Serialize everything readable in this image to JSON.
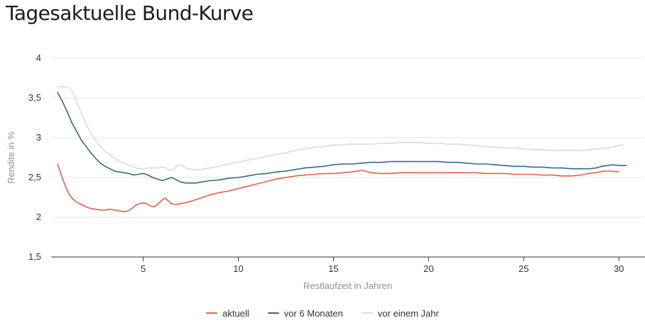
{
  "page": {
    "title": "Tagesaktuelle Bund-Kurve"
  },
  "legend": {
    "items": [
      "aktuell",
      "vor 6 Monaten",
      "vor einem Jahr"
    ]
  },
  "chart_data": {
    "type": "line",
    "title": "Tagesaktuelle Bund-Kurve",
    "xlabel": "Restlaufzeit in Jahren",
    "ylabel": "Rendite in %",
    "x_range": [
      0.2,
      31.3
    ],
    "y_range": [
      1.5,
      4.0
    ],
    "grid": "horizontal",
    "legend_position": "bottom-center",
    "x_ticks": [
      {
        "v": 5,
        "label": "5"
      },
      {
        "v": 10,
        "label": "10"
      },
      {
        "v": 15,
        "label": "15"
      },
      {
        "v": 20,
        "label": "20"
      },
      {
        "v": 25,
        "label": "25"
      },
      {
        "v": 30,
        "label": "30"
      }
    ],
    "y_ticks": [
      {
        "v": 4.0,
        "label": "4"
      },
      {
        "v": 3.5,
        "label": "3,5"
      },
      {
        "v": 3.0,
        "label": "3"
      },
      {
        "v": 2.5,
        "label": "2,5"
      },
      {
        "v": 2.0,
        "label": "2"
      },
      {
        "v": 1.5,
        "label": "1,5"
      }
    ],
    "colors": {
      "grid": "#e6e6e6",
      "axis_line": "#333333",
      "tick_label": "#333333",
      "axis_title": "#919191",
      "title": "#1c1c1c"
    },
    "series": [
      {
        "name": "aktuell",
        "color": "#e0604a",
        "points": [
          [
            0.5,
            2.67
          ],
          [
            0.7,
            2.53
          ],
          [
            0.9,
            2.4
          ],
          [
            1.1,
            2.29
          ],
          [
            1.3,
            2.23
          ],
          [
            1.5,
            2.19
          ],
          [
            1.75,
            2.16
          ],
          [
            2,
            2.13
          ],
          [
            2.25,
            2.11
          ],
          [
            2.5,
            2.1
          ],
          [
            2.75,
            2.09
          ],
          [
            3,
            2.09
          ],
          [
            3.25,
            2.1
          ],
          [
            3.5,
            2.09
          ],
          [
            3.75,
            2.08
          ],
          [
            4,
            2.07
          ],
          [
            4.2,
            2.08
          ],
          [
            4.4,
            2.11
          ],
          [
            4.6,
            2.15
          ],
          [
            4.8,
            2.17
          ],
          [
            5,
            2.18
          ],
          [
            5.2,
            2.17
          ],
          [
            5.4,
            2.14
          ],
          [
            5.6,
            2.13
          ],
          [
            5.8,
            2.17
          ],
          [
            6,
            2.22
          ],
          [
            6.15,
            2.24
          ],
          [
            6.3,
            2.21
          ],
          [
            6.5,
            2.17
          ],
          [
            6.7,
            2.16
          ],
          [
            6.9,
            2.17
          ],
          [
            7.2,
            2.18
          ],
          [
            7.5,
            2.2
          ],
          [
            8,
            2.24
          ],
          [
            8.5,
            2.28
          ],
          [
            9,
            2.31
          ],
          [
            9.5,
            2.33
          ],
          [
            10,
            2.36
          ],
          [
            10.5,
            2.39
          ],
          [
            11,
            2.42
          ],
          [
            11.5,
            2.45
          ],
          [
            12,
            2.48
          ],
          [
            12.5,
            2.5
          ],
          [
            13,
            2.52
          ],
          [
            13.5,
            2.53
          ],
          [
            14,
            2.54
          ],
          [
            14.5,
            2.55
          ],
          [
            15,
            2.55
          ],
          [
            15.5,
            2.56
          ],
          [
            16,
            2.57
          ],
          [
            16.5,
            2.59
          ],
          [
            17,
            2.56
          ],
          [
            17.5,
            2.55
          ],
          [
            18,
            2.55
          ],
          [
            18.5,
            2.56
          ],
          [
            19,
            2.56
          ],
          [
            19.5,
            2.56
          ],
          [
            20,
            2.56
          ],
          [
            20.5,
            2.56
          ],
          [
            21,
            2.56
          ],
          [
            21.5,
            2.56
          ],
          [
            22,
            2.56
          ],
          [
            22.5,
            2.56
          ],
          [
            23,
            2.55
          ],
          [
            23.5,
            2.55
          ],
          [
            24,
            2.55
          ],
          [
            24.5,
            2.54
          ],
          [
            25,
            2.54
          ],
          [
            25.5,
            2.54
          ],
          [
            26,
            2.53
          ],
          [
            26.5,
            2.53
          ],
          [
            27,
            2.52
          ],
          [
            27.5,
            2.52
          ],
          [
            28,
            2.53
          ],
          [
            28.4,
            2.55
          ],
          [
            28.8,
            2.56
          ],
          [
            29.2,
            2.58
          ],
          [
            29.6,
            2.58
          ],
          [
            30,
            2.57
          ]
        ]
      },
      {
        "name": "vor 6 Monaten",
        "color": "#36688c",
        "points": [
          [
            0.5,
            3.57
          ],
          [
            0.75,
            3.46
          ],
          [
            1,
            3.33
          ],
          [
            1.25,
            3.19
          ],
          [
            1.5,
            3.08
          ],
          [
            1.75,
            2.97
          ],
          [
            2,
            2.89
          ],
          [
            2.25,
            2.81
          ],
          [
            2.5,
            2.74
          ],
          [
            2.75,
            2.68
          ],
          [
            3,
            2.64
          ],
          [
            3.25,
            2.61
          ],
          [
            3.5,
            2.58
          ],
          [
            3.75,
            2.57
          ],
          [
            4,
            2.56
          ],
          [
            4.25,
            2.55
          ],
          [
            4.5,
            2.53
          ],
          [
            4.75,
            2.54
          ],
          [
            5,
            2.55
          ],
          [
            5.25,
            2.53
          ],
          [
            5.5,
            2.5
          ],
          [
            5.75,
            2.48
          ],
          [
            6,
            2.46
          ],
          [
            6.25,
            2.48
          ],
          [
            6.5,
            2.5
          ],
          [
            6.75,
            2.47
          ],
          [
            7,
            2.44
          ],
          [
            7.25,
            2.43
          ],
          [
            7.5,
            2.43
          ],
          [
            7.75,
            2.43
          ],
          [
            8,
            2.44
          ],
          [
            8.5,
            2.46
          ],
          [
            9,
            2.47
          ],
          [
            9.5,
            2.49
          ],
          [
            10,
            2.5
          ],
          [
            10.5,
            2.52
          ],
          [
            11,
            2.54
          ],
          [
            11.5,
            2.55
          ],
          [
            12,
            2.57
          ],
          [
            12.5,
            2.58
          ],
          [
            13,
            2.6
          ],
          [
            13.5,
            2.62
          ],
          [
            14,
            2.63
          ],
          [
            14.5,
            2.64
          ],
          [
            15,
            2.66
          ],
          [
            15.5,
            2.67
          ],
          [
            16,
            2.67
          ],
          [
            16.5,
            2.68
          ],
          [
            17,
            2.69
          ],
          [
            17.5,
            2.69
          ],
          [
            18,
            2.7
          ],
          [
            18.5,
            2.7
          ],
          [
            19,
            2.7
          ],
          [
            19.5,
            2.7
          ],
          [
            20,
            2.7
          ],
          [
            20.5,
            2.7
          ],
          [
            21,
            2.69
          ],
          [
            21.5,
            2.69
          ],
          [
            22,
            2.68
          ],
          [
            22.5,
            2.67
          ],
          [
            23,
            2.67
          ],
          [
            23.5,
            2.66
          ],
          [
            24,
            2.65
          ],
          [
            24.5,
            2.64
          ],
          [
            25,
            2.64
          ],
          [
            25.5,
            2.63
          ],
          [
            26,
            2.63
          ],
          [
            26.5,
            2.62
          ],
          [
            27,
            2.62
          ],
          [
            27.5,
            2.61
          ],
          [
            28,
            2.61
          ],
          [
            28.5,
            2.61
          ],
          [
            28.8,
            2.62
          ],
          [
            29.1,
            2.64
          ],
          [
            29.4,
            2.65
          ],
          [
            29.7,
            2.66
          ],
          [
            30,
            2.65
          ],
          [
            30.4,
            2.65
          ]
        ]
      },
      {
        "name": "vor einem Jahr",
        "color": "#d8dcdf",
        "points": [
          [
            0.5,
            3.64
          ],
          [
            0.8,
            3.64
          ],
          [
            1.1,
            3.63
          ],
          [
            1.3,
            3.57
          ],
          [
            1.5,
            3.45
          ],
          [
            1.75,
            3.31
          ],
          [
            2,
            3.17
          ],
          [
            2.25,
            3.06
          ],
          [
            2.5,
            2.97
          ],
          [
            2.75,
            2.89
          ],
          [
            3,
            2.83
          ],
          [
            3.25,
            2.78
          ],
          [
            3.5,
            2.74
          ],
          [
            3.75,
            2.7
          ],
          [
            4,
            2.68
          ],
          [
            4.25,
            2.65
          ],
          [
            4.5,
            2.63
          ],
          [
            4.75,
            2.61
          ],
          [
            5,
            2.61
          ],
          [
            5.25,
            2.62
          ],
          [
            5.5,
            2.62
          ],
          [
            5.75,
            2.62
          ],
          [
            6,
            2.63
          ],
          [
            6.2,
            2.62
          ],
          [
            6.4,
            2.59
          ],
          [
            6.6,
            2.6
          ],
          [
            6.8,
            2.65
          ],
          [
            7,
            2.66
          ],
          [
            7.2,
            2.62
          ],
          [
            7.4,
            2.61
          ],
          [
            7.6,
            2.6
          ],
          [
            7.8,
            2.6
          ],
          [
            8,
            2.6
          ],
          [
            8.5,
            2.62
          ],
          [
            9,
            2.64
          ],
          [
            9.5,
            2.67
          ],
          [
            10,
            2.69
          ],
          [
            10.5,
            2.72
          ],
          [
            11,
            2.74
          ],
          [
            11.5,
            2.77
          ],
          [
            12,
            2.79
          ],
          [
            12.5,
            2.81
          ],
          [
            13,
            2.84
          ],
          [
            13.5,
            2.86
          ],
          [
            14,
            2.88
          ],
          [
            14.5,
            2.89
          ],
          [
            15,
            2.91
          ],
          [
            15.5,
            2.91
          ],
          [
            16,
            2.92
          ],
          [
            16.5,
            2.92
          ],
          [
            17,
            2.92
          ],
          [
            17.5,
            2.93
          ],
          [
            18,
            2.93
          ],
          [
            18.5,
            2.94
          ],
          [
            19,
            2.94
          ],
          [
            19.5,
            2.94
          ],
          [
            20,
            2.93
          ],
          [
            20.5,
            2.93
          ],
          [
            21,
            2.92
          ],
          [
            21.5,
            2.92
          ],
          [
            22,
            2.91
          ],
          [
            22.5,
            2.9
          ],
          [
            23,
            2.89
          ],
          [
            23.5,
            2.88
          ],
          [
            24,
            2.87
          ],
          [
            24.5,
            2.87
          ],
          [
            25,
            2.86
          ],
          [
            25.5,
            2.85
          ],
          [
            26,
            2.85
          ],
          [
            26.5,
            2.84
          ],
          [
            27,
            2.84
          ],
          [
            27.5,
            2.84
          ],
          [
            28,
            2.84
          ],
          [
            28.5,
            2.85
          ],
          [
            29,
            2.86
          ],
          [
            29.3,
            2.87
          ],
          [
            29.6,
            2.88
          ],
          [
            30,
            2.9
          ],
          [
            30.2,
            2.91
          ]
        ]
      }
    ]
  }
}
